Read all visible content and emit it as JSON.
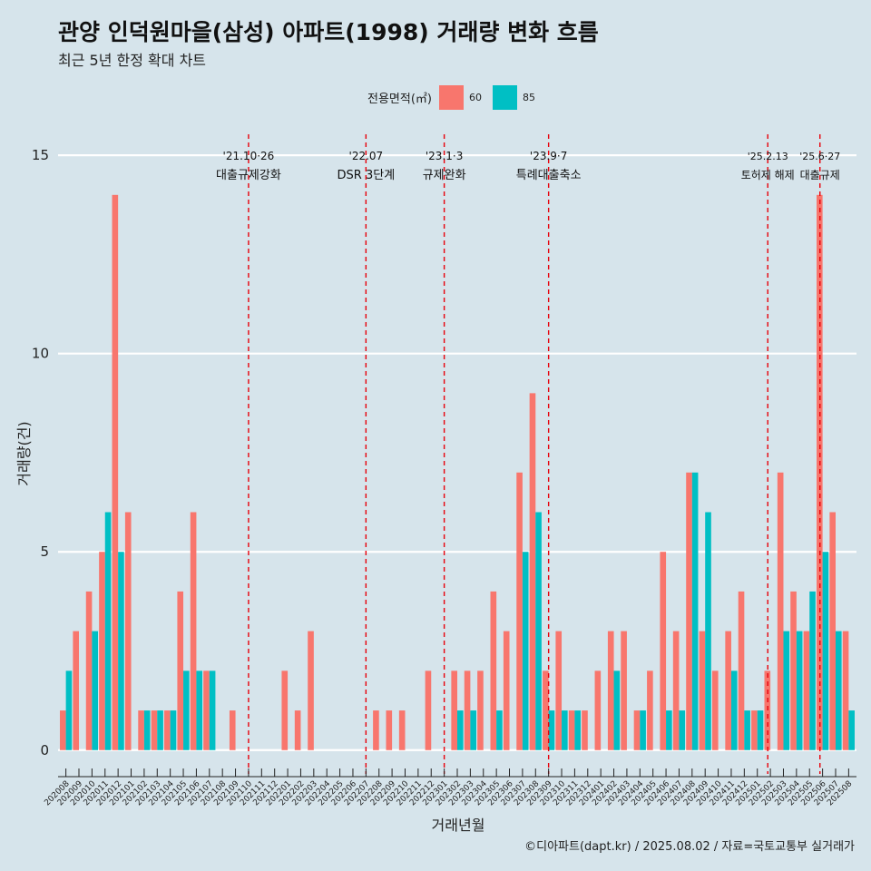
{
  "chart_data": {
    "type": "bar",
    "title": "관양 인덕원마을(삼성) 아파트(1998) 거래량 변화 흐름",
    "subtitle": "최근 5년 한정 확대 차트",
    "xlabel": "거래년월",
    "ylabel": "거래량(건)",
    "ylim": [
      -0.6,
      15.3
    ],
    "yticks": [
      0,
      5,
      10,
      15
    ],
    "legend_title": "전용면적(㎡)",
    "categories": [
      "202008",
      "202009",
      "202010",
      "202011",
      "202012",
      "202101",
      "202102",
      "202103",
      "202104",
      "202105",
      "202106",
      "202107",
      "202108",
      "202109",
      "202110",
      "202111",
      "202112",
      "202201",
      "202202",
      "202203",
      "202204",
      "202205",
      "202206",
      "202207",
      "202208",
      "202209",
      "202210",
      "202211",
      "202212",
      "202301",
      "202302",
      "202303",
      "202304",
      "202305",
      "202306",
      "202307",
      "202308",
      "202309",
      "202310",
      "202311",
      "202312",
      "202401",
      "202402",
      "202403",
      "202404",
      "202405",
      "202406",
      "202407",
      "202408",
      "202409",
      "202410",
      "202411",
      "202412",
      "202501",
      "202502",
      "202503",
      "202504",
      "202505",
      "202506",
      "202507",
      "202508"
    ],
    "series": [
      {
        "name": "60",
        "color": "#f8766d",
        "values": [
          1,
          3,
          4,
          5,
          14,
          6,
          1,
          1,
          1,
          4,
          6,
          2,
          0,
          1,
          0,
          0,
          0,
          2,
          1,
          3,
          0,
          0,
          0,
          0,
          1,
          1,
          1,
          0,
          2,
          0,
          2,
          2,
          2,
          4,
          3,
          7,
          9,
          2,
          3,
          1,
          1,
          2,
          3,
          3,
          1,
          2,
          5,
          3,
          7,
          3,
          2,
          3,
          4,
          1,
          2,
          7,
          4,
          3,
          14,
          6,
          3
        ]
      },
      {
        "name": "85",
        "color": "#00bfc4",
        "values": [
          2,
          0,
          3,
          6,
          5,
          0,
          1,
          1,
          1,
          2,
          2,
          2,
          0,
          0,
          0,
          0,
          0,
          0,
          0,
          0,
          0,
          0,
          0,
          0,
          0,
          0,
          0,
          0,
          0,
          0,
          1,
          1,
          0,
          1,
          0,
          5,
          6,
          1,
          1,
          1,
          0,
          0,
          2,
          0,
          1,
          0,
          1,
          1,
          7,
          6,
          0,
          2,
          1,
          1,
          0,
          3,
          3,
          4,
          5,
          3,
          1
        ]
      }
    ],
    "events": [
      {
        "position": 14.5,
        "line": "'21.10·26",
        "label": "대출규제강화"
      },
      {
        "position": 23.5,
        "line": "'22.07",
        "label": "DSR 3단계"
      },
      {
        "position": 29.5,
        "line": "'23.1·3",
        "label": "규제완화"
      },
      {
        "position": 37.5,
        "line": "'23.9·7",
        "label": "특례대출축소"
      },
      {
        "position": 54.3,
        "line": "'25.2.13",
        "label": "토허제 해제"
      },
      {
        "position": 58.3,
        "line": "'25.6·27",
        "label": "대출규제"
      }
    ],
    "caption": "©디아파트(dapt.kr) / 2025.08.02 / 자료=국토교통부 실거래가"
  }
}
